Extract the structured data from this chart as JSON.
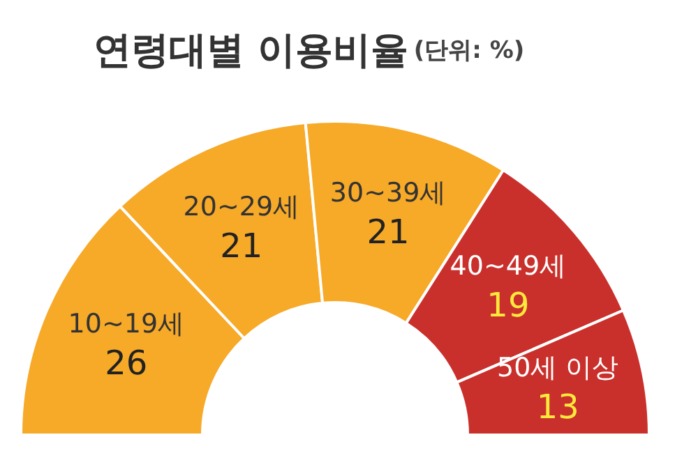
{
  "chart_data": {
    "type": "donut",
    "title": "연령대별 이용비율",
    "subtitle": "(단위: %)",
    "categories": [
      "10~19세",
      "20~29세",
      "30~39세",
      "40~49세",
      "50세 이상"
    ],
    "values": [
      26,
      21,
      21,
      19,
      13
    ],
    "colors": [
      "#f7a928",
      "#f7a928",
      "#f7a928",
      "#c9302c",
      "#c9302c"
    ],
    "data_labels": true,
    "legend": false
  }
}
